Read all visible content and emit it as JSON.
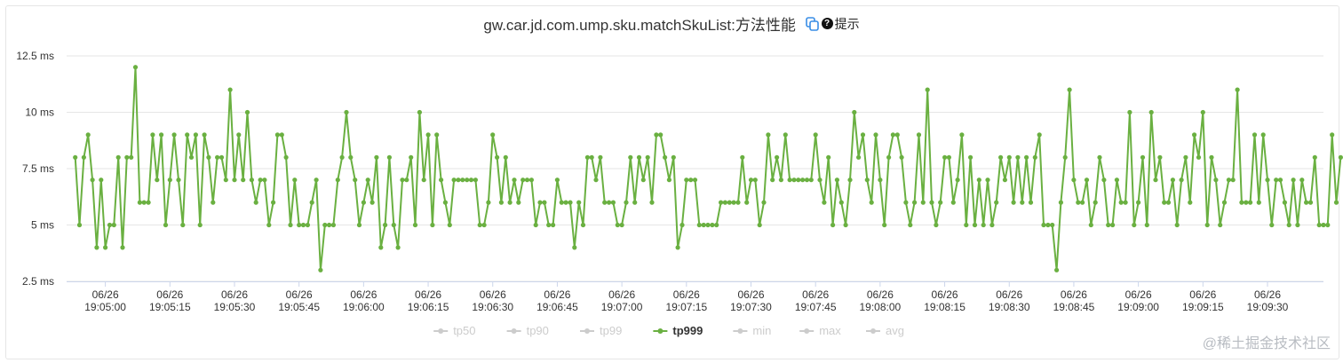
{
  "title": "gw.car.jd.com.ump.sku.matchSkuList:方法性能",
  "help_label": "提示",
  "help_icon_glyph": "?",
  "watermark": "@稀土掘金技术社区",
  "colors": {
    "series": "#6ab041",
    "inactive": "#cccccc",
    "grid": "#e6e6e6",
    "axis": "#ccd6eb"
  },
  "icons": {
    "copy": "copy-icon",
    "help": "help-icon"
  },
  "chart_data": {
    "type": "line",
    "ylim": [
      2.5,
      12.5
    ],
    "yticks": [
      "2.5 ms",
      "5 ms",
      "7.5 ms",
      "10 ms",
      "12.5 ms"
    ],
    "ytick_values": [
      2.5,
      5,
      7.5,
      10,
      12.5
    ],
    "xtick_labels": [
      {
        "date": "06/26",
        "time": "19:05:00"
      },
      {
        "date": "06/26",
        "time": "19:05:15"
      },
      {
        "date": "06/26",
        "time": "19:05:30"
      },
      {
        "date": "06/26",
        "time": "19:05:45"
      },
      {
        "date": "06/26",
        "time": "19:06:00"
      },
      {
        "date": "06/26",
        "time": "19:06:15"
      },
      {
        "date": "06/26",
        "time": "19:06:30"
      },
      {
        "date": "06/26",
        "time": "19:06:45"
      },
      {
        "date": "06/26",
        "time": "19:07:00"
      },
      {
        "date": "06/26",
        "time": "19:07:15"
      },
      {
        "date": "06/26",
        "time": "19:07:30"
      },
      {
        "date": "06/26",
        "time": "19:07:45"
      },
      {
        "date": "06/26",
        "time": "19:08:00"
      },
      {
        "date": "06/26",
        "time": "19:08:15"
      },
      {
        "date": "06/26",
        "time": "19:08:30"
      },
      {
        "date": "06/26",
        "time": "19:08:45"
      },
      {
        "date": "06/26",
        "time": "19:09:00"
      },
      {
        "date": "06/26",
        "time": "19:09:15"
      },
      {
        "date": "06/26",
        "time": "19:09:30"
      }
    ],
    "x_start": "19:04:53",
    "x_step_seconds": 1,
    "x_range": [
      "19:04:51",
      "19:09:43"
    ],
    "grid": true,
    "legend_position": "bottom-center",
    "legend": [
      {
        "name": "tp50",
        "active": false
      },
      {
        "name": "tp90",
        "active": false
      },
      {
        "name": "tp99",
        "active": false
      },
      {
        "name": "tp999",
        "active": true
      },
      {
        "name": "min",
        "active": false
      },
      {
        "name": "max",
        "active": false
      },
      {
        "name": "avg",
        "active": false
      }
    ],
    "series": [
      {
        "name": "tp999",
        "values": [
          8,
          5,
          8,
          9,
          7,
          4,
          7,
          4,
          5,
          5,
          8,
          4,
          8,
          8,
          12,
          6,
          6,
          6,
          9,
          7,
          9,
          5,
          7,
          9,
          7,
          5,
          9,
          8,
          9,
          5,
          9,
          8,
          6,
          8,
          8,
          7,
          11,
          7,
          9,
          7,
          10,
          7,
          6,
          7,
          7,
          5,
          6,
          9,
          9,
          8,
          5,
          7,
          5,
          5,
          5,
          6,
          7,
          3,
          5,
          5,
          5,
          7,
          8,
          10,
          8,
          7,
          5,
          6,
          7,
          6,
          8,
          4,
          5,
          8,
          5,
          4,
          7,
          7,
          8,
          5,
          10,
          7,
          9,
          5,
          9,
          7,
          6,
          5,
          7,
          7,
          7,
          7,
          7,
          7,
          5,
          5,
          6,
          9,
          8,
          6,
          8,
          6,
          7,
          6,
          7,
          7,
          7,
          5,
          6,
          6,
          5,
          5,
          7,
          6,
          6,
          6,
          4,
          6,
          5,
          8,
          8,
          7,
          8,
          6,
          6,
          6,
          5,
          5,
          6,
          8,
          6,
          8,
          7,
          8,
          6,
          9,
          9,
          8,
          7,
          8,
          4,
          5,
          7,
          7,
          7,
          5,
          5,
          5,
          5,
          5,
          6,
          6,
          6,
          6,
          6,
          8,
          6,
          7,
          7,
          5,
          6,
          9,
          7,
          8,
          7,
          9,
          7,
          7,
          7,
          7,
          7,
          7,
          9,
          7,
          6,
          8,
          5,
          7,
          6,
          5,
          7,
          10,
          8,
          9,
          7,
          6,
          9,
          7,
          5,
          8,
          9,
          9,
          8,
          6,
          5,
          6,
          9,
          6,
          11,
          6,
          5,
          6,
          8,
          8,
          6,
          7,
          9,
          5,
          8,
          5,
          7,
          5,
          7,
          5,
          6,
          8,
          7,
          8,
          6,
          8,
          6,
          8,
          6,
          8,
          9,
          5,
          5,
          5,
          3,
          6,
          8,
          11,
          7,
          6,
          6,
          7,
          5,
          6,
          8,
          7,
          5,
          5,
          7,
          6,
          6,
          10,
          5,
          6,
          8,
          5,
          10,
          7,
          8,
          6,
          6,
          7,
          5,
          7,
          8,
          6,
          9,
          8,
          10,
          5,
          8,
          7,
          5,
          6,
          7,
          7,
          11,
          6,
          6,
          6,
          9,
          6,
          9,
          7,
          5,
          7,
          7,
          6,
          5,
          7,
          5,
          7,
          6,
          6,
          8,
          5,
          5,
          5,
          9,
          6,
          8
        ]
      }
    ]
  }
}
